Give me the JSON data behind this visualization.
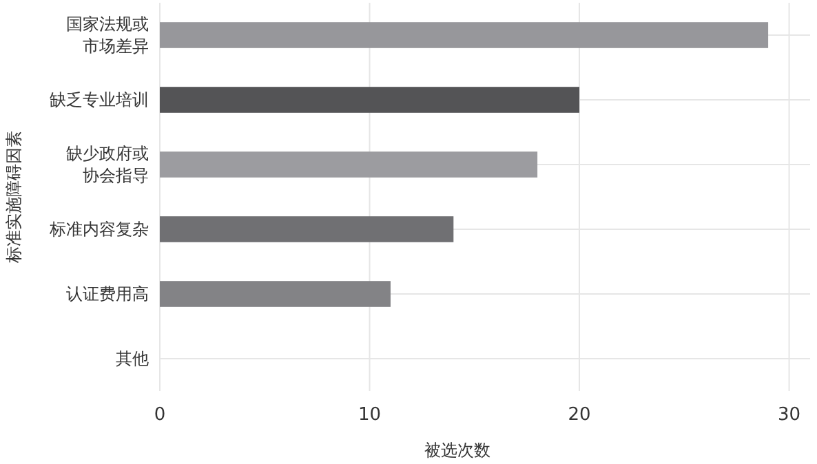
{
  "chart_data": {
    "type": "bar",
    "orientation": "horizontal",
    "xlabel": "被选次数",
    "ylabel": "标准实施障碍因素",
    "categories": [
      "国家法规或市场差异",
      "缺乏专业培训",
      "缺少政府或协会指导",
      "标准内容复杂",
      "认证费用高",
      "其他"
    ],
    "values": [
      29,
      20,
      18,
      14,
      11,
      0
    ],
    "colors": [
      "#97979b",
      "#545456",
      "#9c9ca0",
      "#707073",
      "#838386",
      "#909093"
    ],
    "xlim": [
      0,
      31
    ],
    "xticks": [
      0,
      10,
      20,
      30
    ],
    "grid": true
  }
}
